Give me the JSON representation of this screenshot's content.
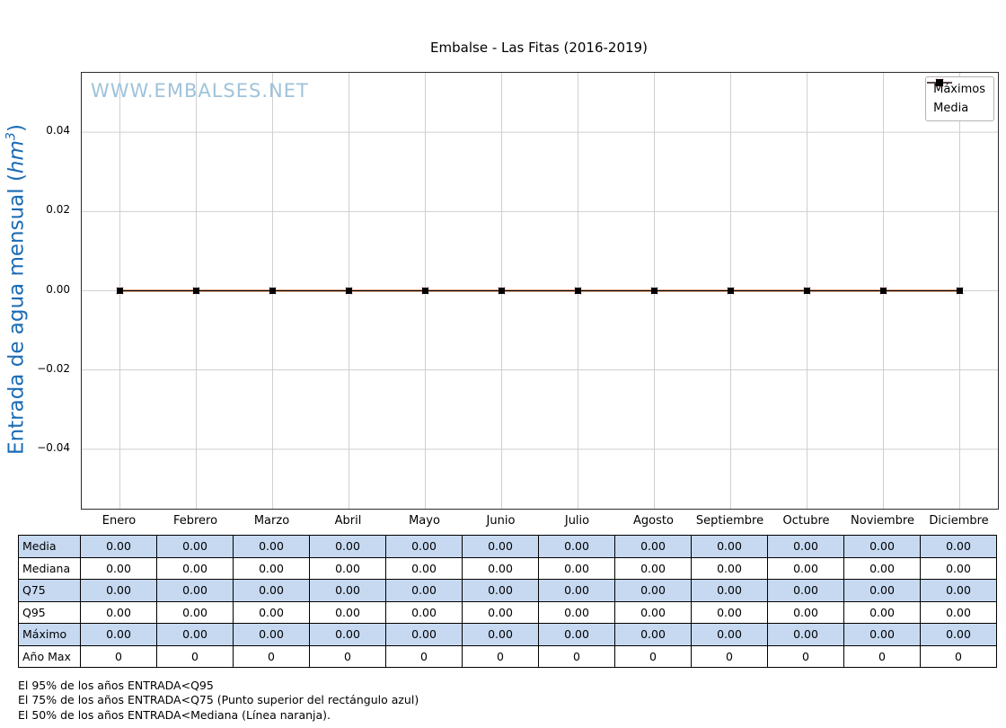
{
  "chart_data": {
    "type": "line",
    "title": "Embalse - Las Fitas (2016-2019)",
    "ylabel": "Entrada de agua mensual (hm³)",
    "xlabel": "",
    "grid": true,
    "legend_position": "upper right",
    "ylim": [
      -0.055,
      0.055
    ],
    "yticks": [
      {
        "label": "0.04",
        "value": 0.04
      },
      {
        "label": "0.02",
        "value": 0.02
      },
      {
        "label": "0.00",
        "value": 0.0
      },
      {
        "label": "−0.02",
        "value": -0.02
      },
      {
        "label": "−0.04",
        "value": -0.04
      }
    ],
    "categories": [
      "Enero",
      "Febrero",
      "Marzo",
      "Abril",
      "Mayo",
      "Junio",
      "Julio",
      "Agosto",
      "Septiembre",
      "Octubre",
      "Noviembre",
      "Diciembre"
    ],
    "series": [
      {
        "name": "Mediana",
        "color": "#ff7f0e",
        "marker": "none",
        "width": 2,
        "values": [
          0,
          0,
          0,
          0,
          0,
          0,
          0,
          0,
          0,
          0,
          0,
          0
        ]
      },
      {
        "name": "Máximos",
        "color": "#e00000",
        "marker": "x",
        "width": 1.2,
        "values": [
          0,
          0,
          0,
          0,
          0,
          0,
          0,
          0,
          0,
          0,
          0,
          0
        ]
      },
      {
        "name": "Media",
        "color": "#000000",
        "marker": "square",
        "width": 1.2,
        "values": [
          0,
          0,
          0,
          0,
          0,
          0,
          0,
          0,
          0,
          0,
          0,
          0
        ]
      }
    ]
  },
  "watermark": "WWW.EMBALSES.NET",
  "ylabel_parts": {
    "prefix": "Entrada de agua mensual (",
    "unit": "hm",
    "sup": "3",
    "suffix": ")"
  },
  "legend": [
    {
      "label": "Máximos",
      "color": "#e00000",
      "marker": "x"
    },
    {
      "label": "Media",
      "color": "#000000",
      "marker": "square"
    }
  ],
  "table": {
    "row_headers": [
      "Media",
      "Mediana",
      "Q75",
      "Q95",
      "Máximo",
      "Año Max"
    ],
    "highlight_rows": [
      0,
      2,
      4
    ],
    "rows": [
      [
        "0.00",
        "0.00",
        "0.00",
        "0.00",
        "0.00",
        "0.00",
        "0.00",
        "0.00",
        "0.00",
        "0.00",
        "0.00",
        "0.00"
      ],
      [
        "0.00",
        "0.00",
        "0.00",
        "0.00",
        "0.00",
        "0.00",
        "0.00",
        "0.00",
        "0.00",
        "0.00",
        "0.00",
        "0.00"
      ],
      [
        "0.00",
        "0.00",
        "0.00",
        "0.00",
        "0.00",
        "0.00",
        "0.00",
        "0.00",
        "0.00",
        "0.00",
        "0.00",
        "0.00"
      ],
      [
        "0.00",
        "0.00",
        "0.00",
        "0.00",
        "0.00",
        "0.00",
        "0.00",
        "0.00",
        "0.00",
        "0.00",
        "0.00",
        "0.00"
      ],
      [
        "0.00",
        "0.00",
        "0.00",
        "0.00",
        "0.00",
        "0.00",
        "0.00",
        "0.00",
        "0.00",
        "0.00",
        "0.00",
        "0.00"
      ],
      [
        "0",
        "0",
        "0",
        "0",
        "0",
        "0",
        "0",
        "0",
        "0",
        "0",
        "0",
        "0"
      ]
    ]
  },
  "footnotes": [
    "El 95% de los años ENTRADA<Q95",
    "El 75% de los años ENTRADA<Q75 (Punto superior del rectángulo azul)",
    "El 50% de los años ENTRADA<Mediana (Línea naranja)."
  ],
  "colors": {
    "ylabel_blue": "#1a6bb5",
    "watermark_blue": "#9fc3da",
    "table_highlight": "#c6d9f1",
    "grid": "#cfcfcf",
    "maximos_red": "#e00000",
    "media_black": "#000000",
    "mediana_orange": "#ff7f0e"
  }
}
